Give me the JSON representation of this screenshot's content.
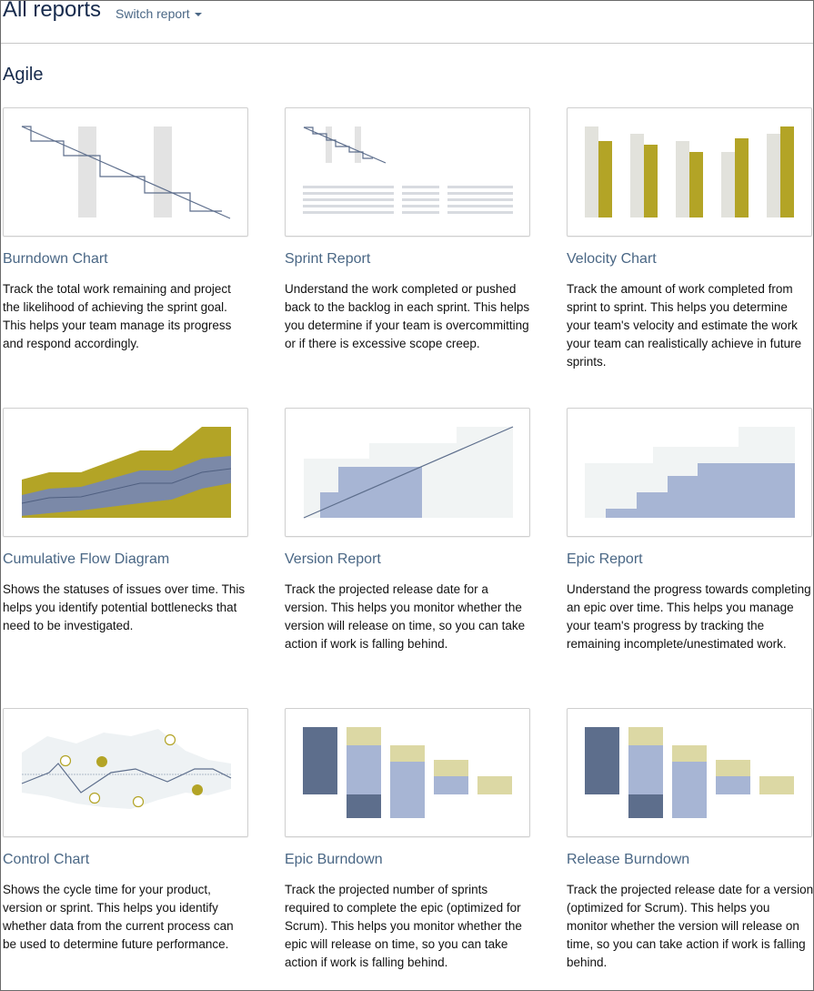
{
  "header": {
    "title": "All reports",
    "switch_report": "Switch report"
  },
  "section": {
    "title": "Agile"
  },
  "colors": {
    "link": "#4a6785",
    "olive": "#b3a426",
    "navy": "#5d6e8c",
    "blue_fill": "#a7b5d4",
    "grey_bar": "#e2e2dc",
    "pale": "#f1f4f4",
    "khaki": "#dcd8a4"
  },
  "reports": [
    {
      "title": "Burndown Chart",
      "icon": "burndown-chart-thumbnail",
      "description": "Track the total work remaining and project the likelihood of achieving the sprint goal. This helps your team manage its progress and respond accordingly."
    },
    {
      "title": "Sprint Report",
      "icon": "sprint-report-thumbnail",
      "description": "Understand the work completed or pushed back to the backlog in each sprint. This helps you determine if your team is overcommitting or if there is excessive scope creep."
    },
    {
      "title": "Velocity Chart",
      "icon": "velocity-chart-thumbnail",
      "description": "Track the amount of work completed from sprint to sprint. This helps you determine your team's velocity and estimate the work your team can realistically achieve in future sprints."
    },
    {
      "title": "Cumulative Flow Diagram",
      "icon": "cumulative-flow-thumbnail",
      "description": "Shows the statuses of issues over time. This helps you identify potential bottlenecks that need to be investigated."
    },
    {
      "title": "Version Report",
      "icon": "version-report-thumbnail",
      "description": "Track the projected release date for a version. This helps you monitor whether the version will release on time, so you can take action if work is falling behind."
    },
    {
      "title": "Epic Report",
      "icon": "epic-report-thumbnail",
      "description": "Understand the progress towards completing an epic over time. This helps you manage your team's progress by tracking the remaining incomplete/unestimated work."
    },
    {
      "title": "Control Chart",
      "icon": "control-chart-thumbnail",
      "description": "Shows the cycle time for your product, version or sprint. This helps you identify whether data from the current process can be used to determine future performance."
    },
    {
      "title": "Epic Burndown",
      "icon": "epic-burndown-thumbnail",
      "description": "Track the projected number of sprints required to complete the epic (optimized for Scrum). This helps you monitor whether the epic will release on time, so you can take action if work is falling behind."
    },
    {
      "title": "Release Burndown",
      "icon": "release-burndown-thumbnail",
      "description": "Track the projected release date for a version (optimized for Scrum). This helps you monitor whether the version will release on time, so you can take action if work is falling behind."
    }
  ]
}
